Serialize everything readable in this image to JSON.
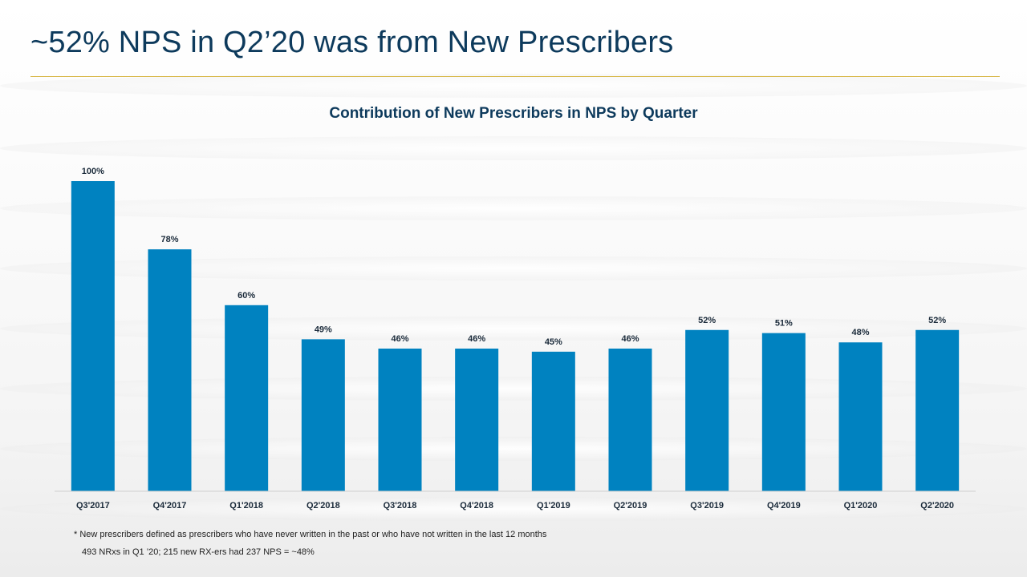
{
  "slide": {
    "title": "~52% NPS in Q2’20 was from New Prescribers"
  },
  "footnotes": {
    "definition": "* New prescribers defined as prescribers who have never written in the past or who have not written in the last 12 months",
    "calc": "493 NRxs in Q1 ’20; 215 new RX-ers had 237 NPS = ~48%"
  },
  "colors": {
    "bar": "#0082c0",
    "title": "#0d3a5c",
    "rule": "#d8b84a"
  },
  "chart_data": {
    "type": "bar",
    "title": "Contribution of New Prescribers in NPS by Quarter",
    "xlabel": "",
    "ylabel": "",
    "categories": [
      "Q3'2017",
      "Q4'2017",
      "Q1'2018",
      "Q2'2018",
      "Q3'2018",
      "Q4'2018",
      "Q1'2019",
      "Q2'2019",
      "Q3'2019",
      "Q4'2019",
      "Q1'2020",
      "Q2'2020"
    ],
    "values": [
      100,
      78,
      60,
      49,
      46,
      46,
      45,
      46,
      52,
      51,
      48,
      52
    ],
    "data_labels": [
      "100%",
      "78%",
      "60%",
      "49%",
      "46%",
      "46%",
      "45%",
      "46%",
      "52%",
      "51%",
      "48%",
      "52%"
    ],
    "ylim": [
      0,
      100
    ],
    "grid": false,
    "legend": "none"
  }
}
